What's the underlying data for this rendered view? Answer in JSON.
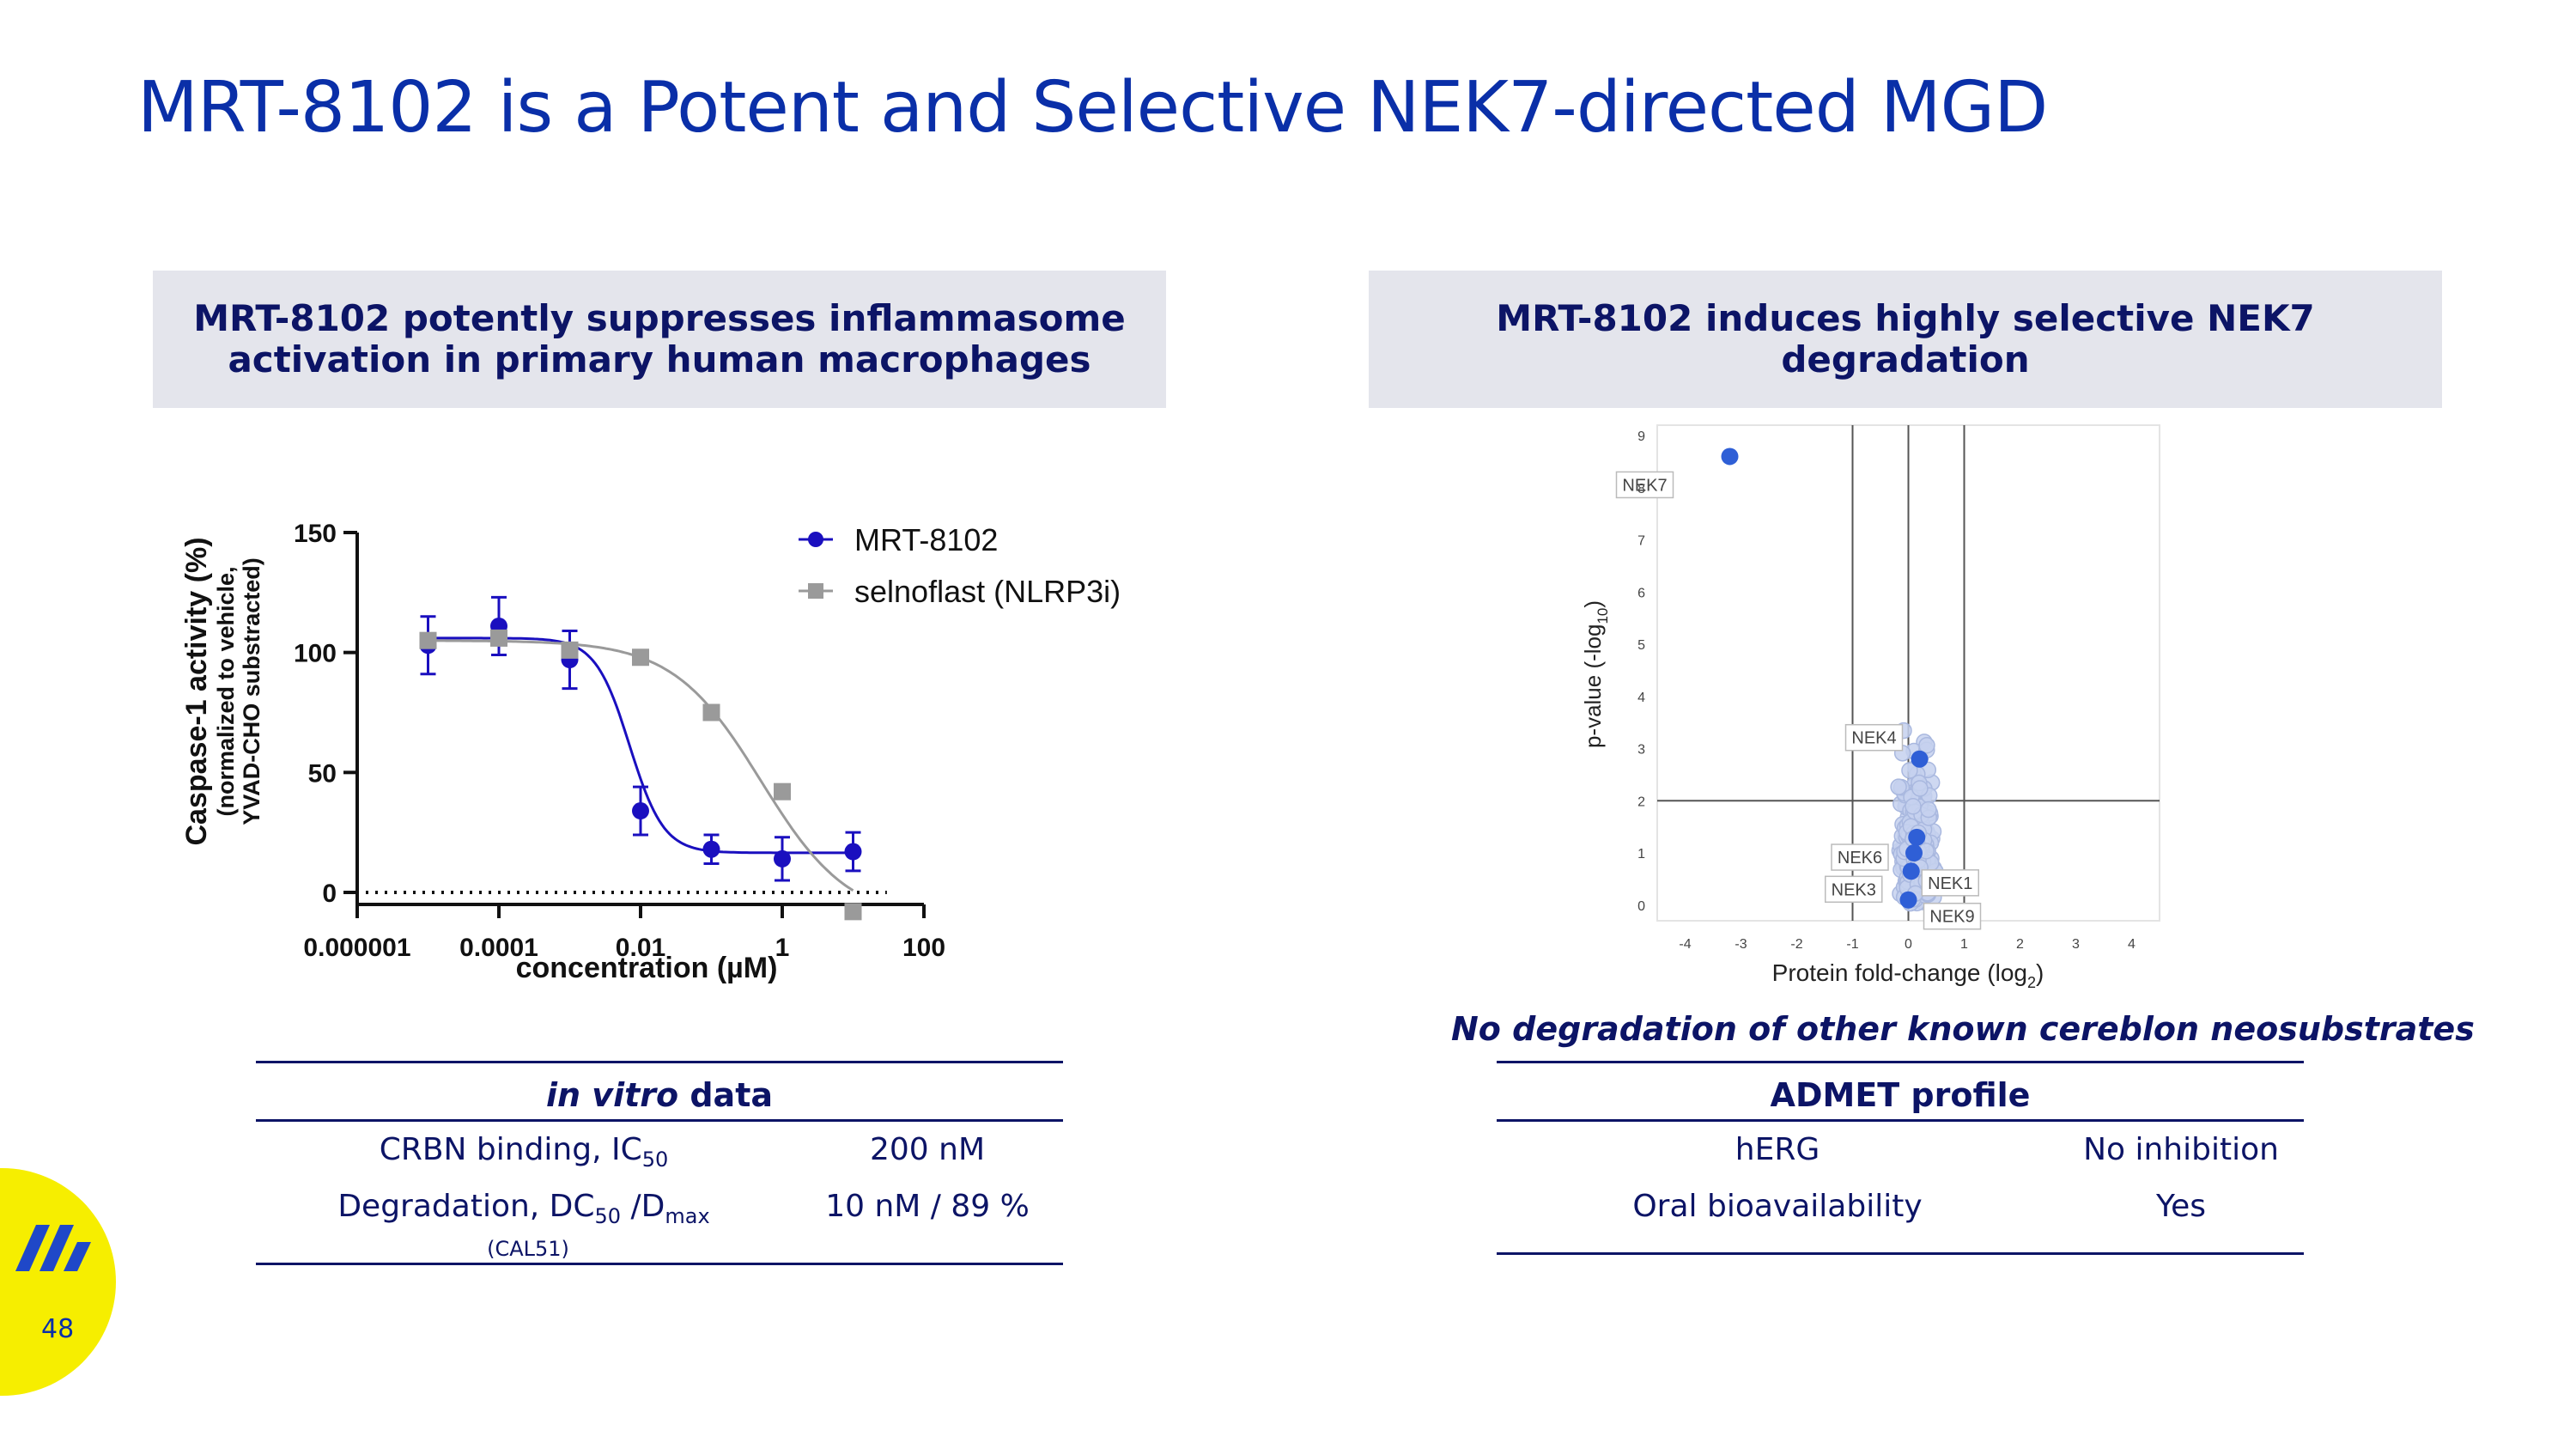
{
  "title": "MRT-8102 is a Potent and Selective NEK7-directed MGD",
  "left_panel": {
    "heading_line1": "MRT-8102 potently suppresses inflammasome",
    "heading_line2": "activation in primary human macrophages"
  },
  "right_panel": {
    "heading": "MRT-8102 induces highly selective NEK7 degradation",
    "note": "No degradation of other known cereblon neosubstrates"
  },
  "chart_data": [
    {
      "type": "line",
      "title": "",
      "xlabel": "concentration (µM)",
      "ylabel": "Caspase-1 activity (%)",
      "ylabel_sub1": "(normalized to vehicle,",
      "ylabel_sub2": "YVAD-CHO substracted)",
      "x_scale": "log",
      "xlim": [
        1e-06,
        100
      ],
      "ylim": [
        0,
        150
      ],
      "x_ticks": [
        "0.000001",
        "0.0001",
        "0.01",
        "1",
        "100"
      ],
      "y_ticks": [
        "0",
        "50",
        "100",
        "150"
      ],
      "legend_position": "top-right",
      "series": [
        {
          "name": "MRT-8102",
          "color": "#1a0fbf",
          "marker": "circle",
          "x": [
            1e-05,
            0.0001,
            0.001,
            0.01,
            0.1,
            1,
            10
          ],
          "y": [
            103,
            111,
            97,
            34,
            18,
            14,
            17
          ],
          "err": [
            12,
            12,
            12,
            10,
            6,
            9,
            8
          ]
        },
        {
          "name": "selnoflast (NLRP3i)",
          "color": "#9a9a9a",
          "marker": "square",
          "x": [
            1e-05,
            0.0001,
            0.001,
            0.01,
            0.1,
            1,
            10
          ],
          "y": [
            105,
            106,
            101,
            98,
            75,
            42,
            -8
          ],
          "err": [
            0,
            0,
            0,
            0,
            0,
            0,
            0
          ]
        }
      ],
      "reference_line_y": 0
    },
    {
      "type": "scatter",
      "xlabel": "Protein fold-change (log",
      "xlabel_sub": "2",
      "xlabel_end": ")",
      "ylabel": "p-value (-log",
      "ylabel_sub": "10",
      "ylabel_end": ")",
      "xlim": [
        -4.5,
        4.5
      ],
      "ylim": [
        -0.3,
        9.2
      ],
      "x_ticks": [
        "-4",
        "-3",
        "-2",
        "-1",
        "0",
        "1",
        "2",
        "3",
        "4"
      ],
      "y_ticks": [
        "0",
        "1",
        "2",
        "3",
        "4",
        "5",
        "6",
        "7",
        "8",
        "9"
      ],
      "threshold_lines": {
        "x": [
          -1,
          0,
          1
        ],
        "y": [
          2
        ]
      },
      "highlighted": [
        {
          "label": "NEK7",
          "x": -3.2,
          "y": 8.6
        },
        {
          "label": "NEK4",
          "x": 0.2,
          "y": 2.8
        },
        {
          "label": "NEK1",
          "x": 0.15,
          "y": 1.3
        },
        {
          "label": "NEK6",
          "x": 0.1,
          "y": 1.0
        },
        {
          "label": "NEK3",
          "x": 0.05,
          "y": 0.65
        },
        {
          "label": "NEK9",
          "x": 0.0,
          "y": 0.1
        }
      ],
      "background_points_color": "#c5d1ee",
      "highlight_color": "#2f5fd6"
    }
  ],
  "in_vitro_table": {
    "header_italic": "in vitro",
    "header_rest": "data",
    "rows": [
      {
        "label": "CRBN binding, IC",
        "label_sub": "50",
        "value": "200 nM"
      },
      {
        "label": "Degradation, DC",
        "label_sub": "50",
        "label_mid": " /D",
        "label_sub2": "max",
        "value": "10 nM / 89 %",
        "footnote": "(CAL51)"
      }
    ]
  },
  "admet_table": {
    "header": "ADMET profile",
    "rows": [
      {
        "label": "hERG",
        "value": "No inhibition"
      },
      {
        "label": "Oral bioavailability",
        "value": "Yes"
      }
    ]
  },
  "page_number": "48"
}
